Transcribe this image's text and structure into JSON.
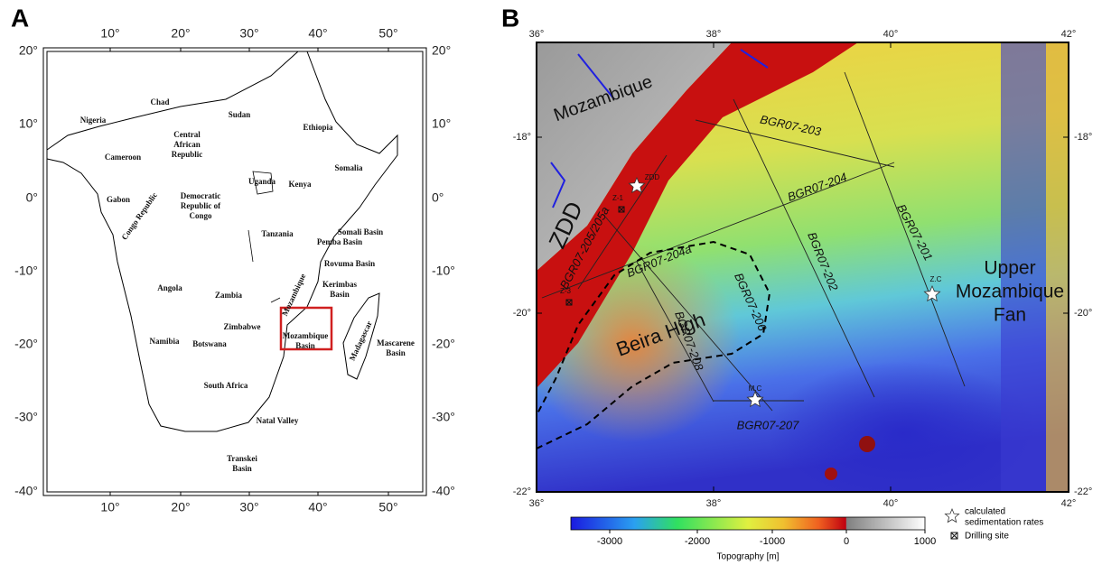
{
  "panel_a": {
    "label": "A",
    "lon_ticks": [
      "10°",
      "20°",
      "30°",
      "40°",
      "50°"
    ],
    "lat_ticks": [
      "20°",
      "10°",
      "0°",
      "-10°",
      "-20°",
      "-30°",
      "-40°"
    ],
    "places": [
      [
        "Chad"
      ],
      [
        "Nigeria"
      ],
      [
        "Sudan"
      ],
      [
        "Ethiopia"
      ],
      [
        "Central",
        "African",
        "Republic"
      ],
      [
        "Cameroon"
      ],
      [
        "Somalia"
      ],
      [
        "Gabon"
      ],
      [
        "Uganda"
      ],
      [
        "Kenya"
      ],
      [
        "Congo Republic"
      ],
      [
        "Democratic",
        "Republic of",
        "Congo"
      ],
      [
        "Tanzania"
      ],
      [
        "Somali Basin"
      ],
      [
        "Pemba Basin"
      ],
      [
        "Rovuma Basin"
      ],
      [
        "Kerimbas",
        "Basin"
      ],
      [
        "Angola"
      ],
      [
        "Zambia"
      ],
      [
        "Mozambique"
      ],
      [
        "Zimbabwe"
      ],
      [
        "Mozambique",
        "Basin"
      ],
      [
        "Namibia"
      ],
      [
        "Botswana"
      ],
      [
        "Madagascar"
      ],
      [
        "Mascarene",
        "Basin"
      ],
      [
        "South Africa"
      ],
      [
        "Natal Valley"
      ],
      [
        "Transkei",
        "Basin"
      ]
    ]
  },
  "panel_b": {
    "label": "B",
    "lon_ticks": [
      "36°",
      "38°",
      "40°",
      "42°"
    ],
    "lat_ticks": [
      "-18°",
      "-20°",
      "-22°"
    ],
    "places": [
      [
        "Mozambique"
      ],
      [
        "ZDD"
      ],
      [
        "Beira High"
      ],
      [
        "Upper",
        "Mozambique",
        "Fan"
      ]
    ],
    "seismic_lines": [
      "BGR07-203",
      "BGR07-204",
      "BGR07-204a",
      "BGR07-205/205a",
      "BGR07-201",
      "BGR07-202",
      "BGR07-206",
      "BGR07-208",
      "BGR07-207"
    ],
    "sites": [
      "ZDD",
      "Z-1",
      "Z-3",
      "Z.C",
      "M.C"
    ]
  },
  "colorbar": {
    "title": "Topography [m]",
    "ticks": [
      "-3000",
      "-2000",
      "-1000",
      "0",
      "1000"
    ]
  },
  "legend": [
    [
      "calculated",
      "sedimentation rates"
    ],
    [
      "Drilling site"
    ]
  ]
}
